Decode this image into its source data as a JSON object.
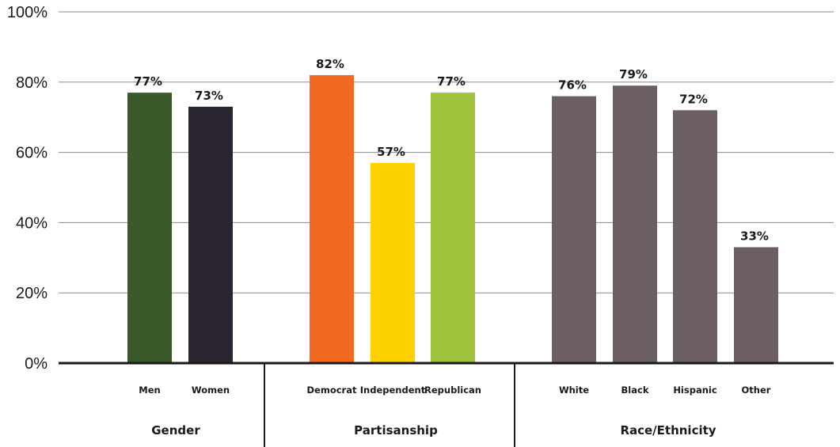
{
  "chart_data": {
    "type": "bar",
    "ylim": [
      0,
      100
    ],
    "yticks": [
      "0%",
      "20%",
      "40%",
      "60%",
      "80%",
      "100%"
    ],
    "ytick_values": [
      0,
      20,
      40,
      60,
      80,
      100
    ],
    "grid": true,
    "groups": [
      {
        "name": "Gender",
        "bars": [
          {
            "category": "Men",
            "value": 77,
            "label": "77%",
            "color": "#3b5a2b"
          },
          {
            "category": "Women",
            "value": 73,
            "label": "73%",
            "color": "#2a2530"
          }
        ]
      },
      {
        "name": "Partisanship",
        "bars": [
          {
            "category": "Democrat",
            "value": 82,
            "label": "82%",
            "color": "#f26a22"
          },
          {
            "category": "Independent",
            "value": 57,
            "label": "57%",
            "color": "#fdd000"
          },
          {
            "category": "Republican",
            "value": 77,
            "label": "77%",
            "color": "#a0c23a"
          }
        ]
      },
      {
        "name": "Race/Ethnicity",
        "bars": [
          {
            "category": "White",
            "value": 76,
            "label": "76%",
            "color": "#6b5f62"
          },
          {
            "category": "Black",
            "value": 79,
            "label": "79%",
            "color": "#6b5f62"
          },
          {
            "category": "Hispanic",
            "value": 72,
            "label": "72%",
            "color": "#6b5f62"
          },
          {
            "category": "Other",
            "value": 33,
            "label": "33%",
            "color": "#6b5f62"
          }
        ]
      }
    ]
  }
}
